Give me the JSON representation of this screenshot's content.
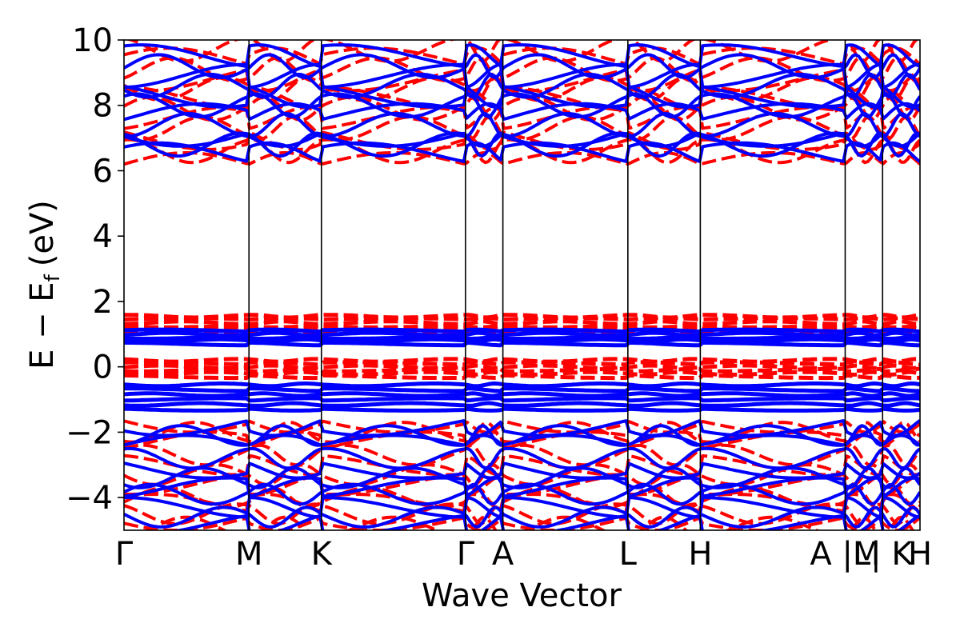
{
  "chart_data": {
    "type": "line",
    "title": "",
    "xlabel": "Wave Vector",
    "ylabel": {
      "main": "E − E",
      "subscript": "f",
      "unit": "(eV)"
    },
    "ylim": [
      -5,
      10
    ],
    "y_ticks": [
      -4,
      -2,
      0,
      2,
      4,
      6,
      8,
      10
    ],
    "y_tick_labels": [
      "−4",
      "−2",
      "0",
      "2",
      "4",
      "6",
      "8",
      "10"
    ],
    "k_path": [
      {
        "label": "Γ",
        "k": 0.0
      },
      {
        "label": "M",
        "k": 0.157
      },
      {
        "label": "K",
        "k": 0.248
      },
      {
        "label": "Γ",
        "k": 0.429
      },
      {
        "label": "A",
        "k": 0.476
      },
      {
        "label": "L",
        "k": 0.633
      },
      {
        "label": "H",
        "k": 0.724
      },
      {
        "label": "A |M",
        "k": 0.906
      },
      {
        "label": "L| K",
        "k": 0.953
      },
      {
        "label": "H",
        "k": 1.0
      }
    ],
    "grid": false,
    "legend": "none",
    "series": [
      {
        "style": "dashed",
        "color": "#ff0000",
        "bands": {
          "conduction_energies": [
            6.2,
            6.6,
            7.0,
            7.3,
            7.6,
            7.9,
            8.2,
            8.5,
            8.8,
            9.1,
            9.4,
            9.7
          ],
          "gap_upper_energies": [
            1.05,
            1.15,
            1.25,
            1.35,
            1.45,
            1.55
          ],
          "gap_lower_energies": [
            -0.3,
            -0.2,
            -0.1,
            0.0,
            0.1,
            0.2
          ],
          "valence_energies": [
            -1.7,
            -2.0,
            -2.3,
            -2.7,
            -3.0,
            -3.3,
            -3.6,
            -4.0,
            -4.2,
            -4.5,
            -4.7,
            -4.9
          ]
        }
      },
      {
        "style": "solid",
        "color": "#0000ff",
        "bands": {
          "conduction_energies": [
            6.5,
            6.8,
            7.1,
            7.4,
            7.7,
            8.0,
            8.3,
            8.6,
            8.9,
            9.2,
            9.5
          ],
          "gap_upper_energies": [
            0.7,
            0.8,
            0.9,
            1.0,
            1.1
          ],
          "gap_lower_energies": [
            -1.3,
            -1.15,
            -1.0,
            -0.85,
            -0.7,
            -0.55
          ],
          "valence_energies": [
            -1.8,
            -2.1,
            -2.4,
            -2.8,
            -3.1,
            -3.4,
            -3.7,
            -3.9,
            -4.3,
            -4.6,
            -4.8
          ]
        }
      }
    ]
  }
}
